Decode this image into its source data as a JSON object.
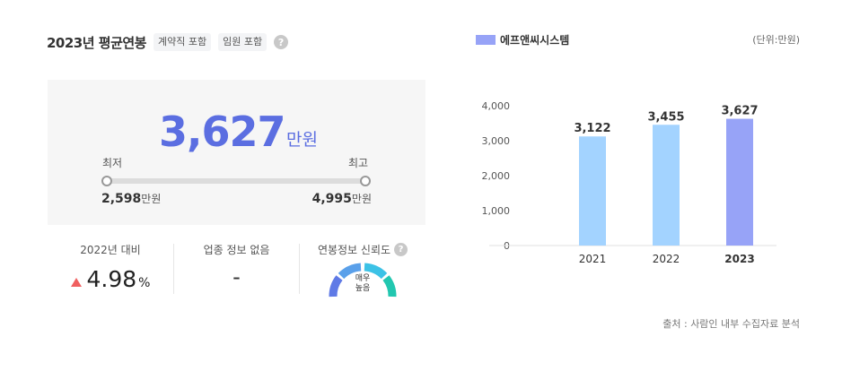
{
  "header": {
    "title": "2023년 평균연봉",
    "chips": [
      "계약직 포함",
      "임원 포함"
    ],
    "help_glyph": "?"
  },
  "salary": {
    "average": "3,627",
    "unit": "만원",
    "min_label": "최저",
    "max_label": "최고",
    "min_value": "2,598",
    "max_value": "4,995",
    "min_unit": "만원",
    "max_unit": "만원"
  },
  "stats": {
    "growth_label": "2022년 대비",
    "growth_value": "4.98",
    "growth_unit": "%",
    "growth_direction": "up",
    "industry_label": "업종 정보 없음",
    "industry_value": "-",
    "reliability_label": "연봉정보 신뢰도",
    "reliability_value_line1": "매우",
    "reliability_value_line2": "높음",
    "reliability_level": 1.0
  },
  "colors": {
    "accent": "#5b6ee1",
    "bar_past": "#a3d3ff",
    "bar_current": "#97a3f7",
    "up_arrow": "#f06060"
  },
  "chart_legend": "에프앤씨시스템",
  "unit_note": "(단위:만원)",
  "source": "출처 : 사람인 내부 수집자료 분석",
  "chart_data": {
    "type": "bar",
    "categories": [
      "2021",
      "2022",
      "2023"
    ],
    "values": [
      3122,
      3455,
      3627
    ],
    "value_labels": [
      "3,122",
      "3,455",
      "3,627"
    ],
    "series": [
      {
        "name": "에프앤씨시스템",
        "values": [
          3122,
          3455,
          3627
        ]
      }
    ],
    "yticks": [
      "0",
      "1,000",
      "2,000",
      "3,000",
      "4,000"
    ],
    "ylim": [
      0,
      4000
    ],
    "highlight_category": "2023",
    "grid": false
  }
}
